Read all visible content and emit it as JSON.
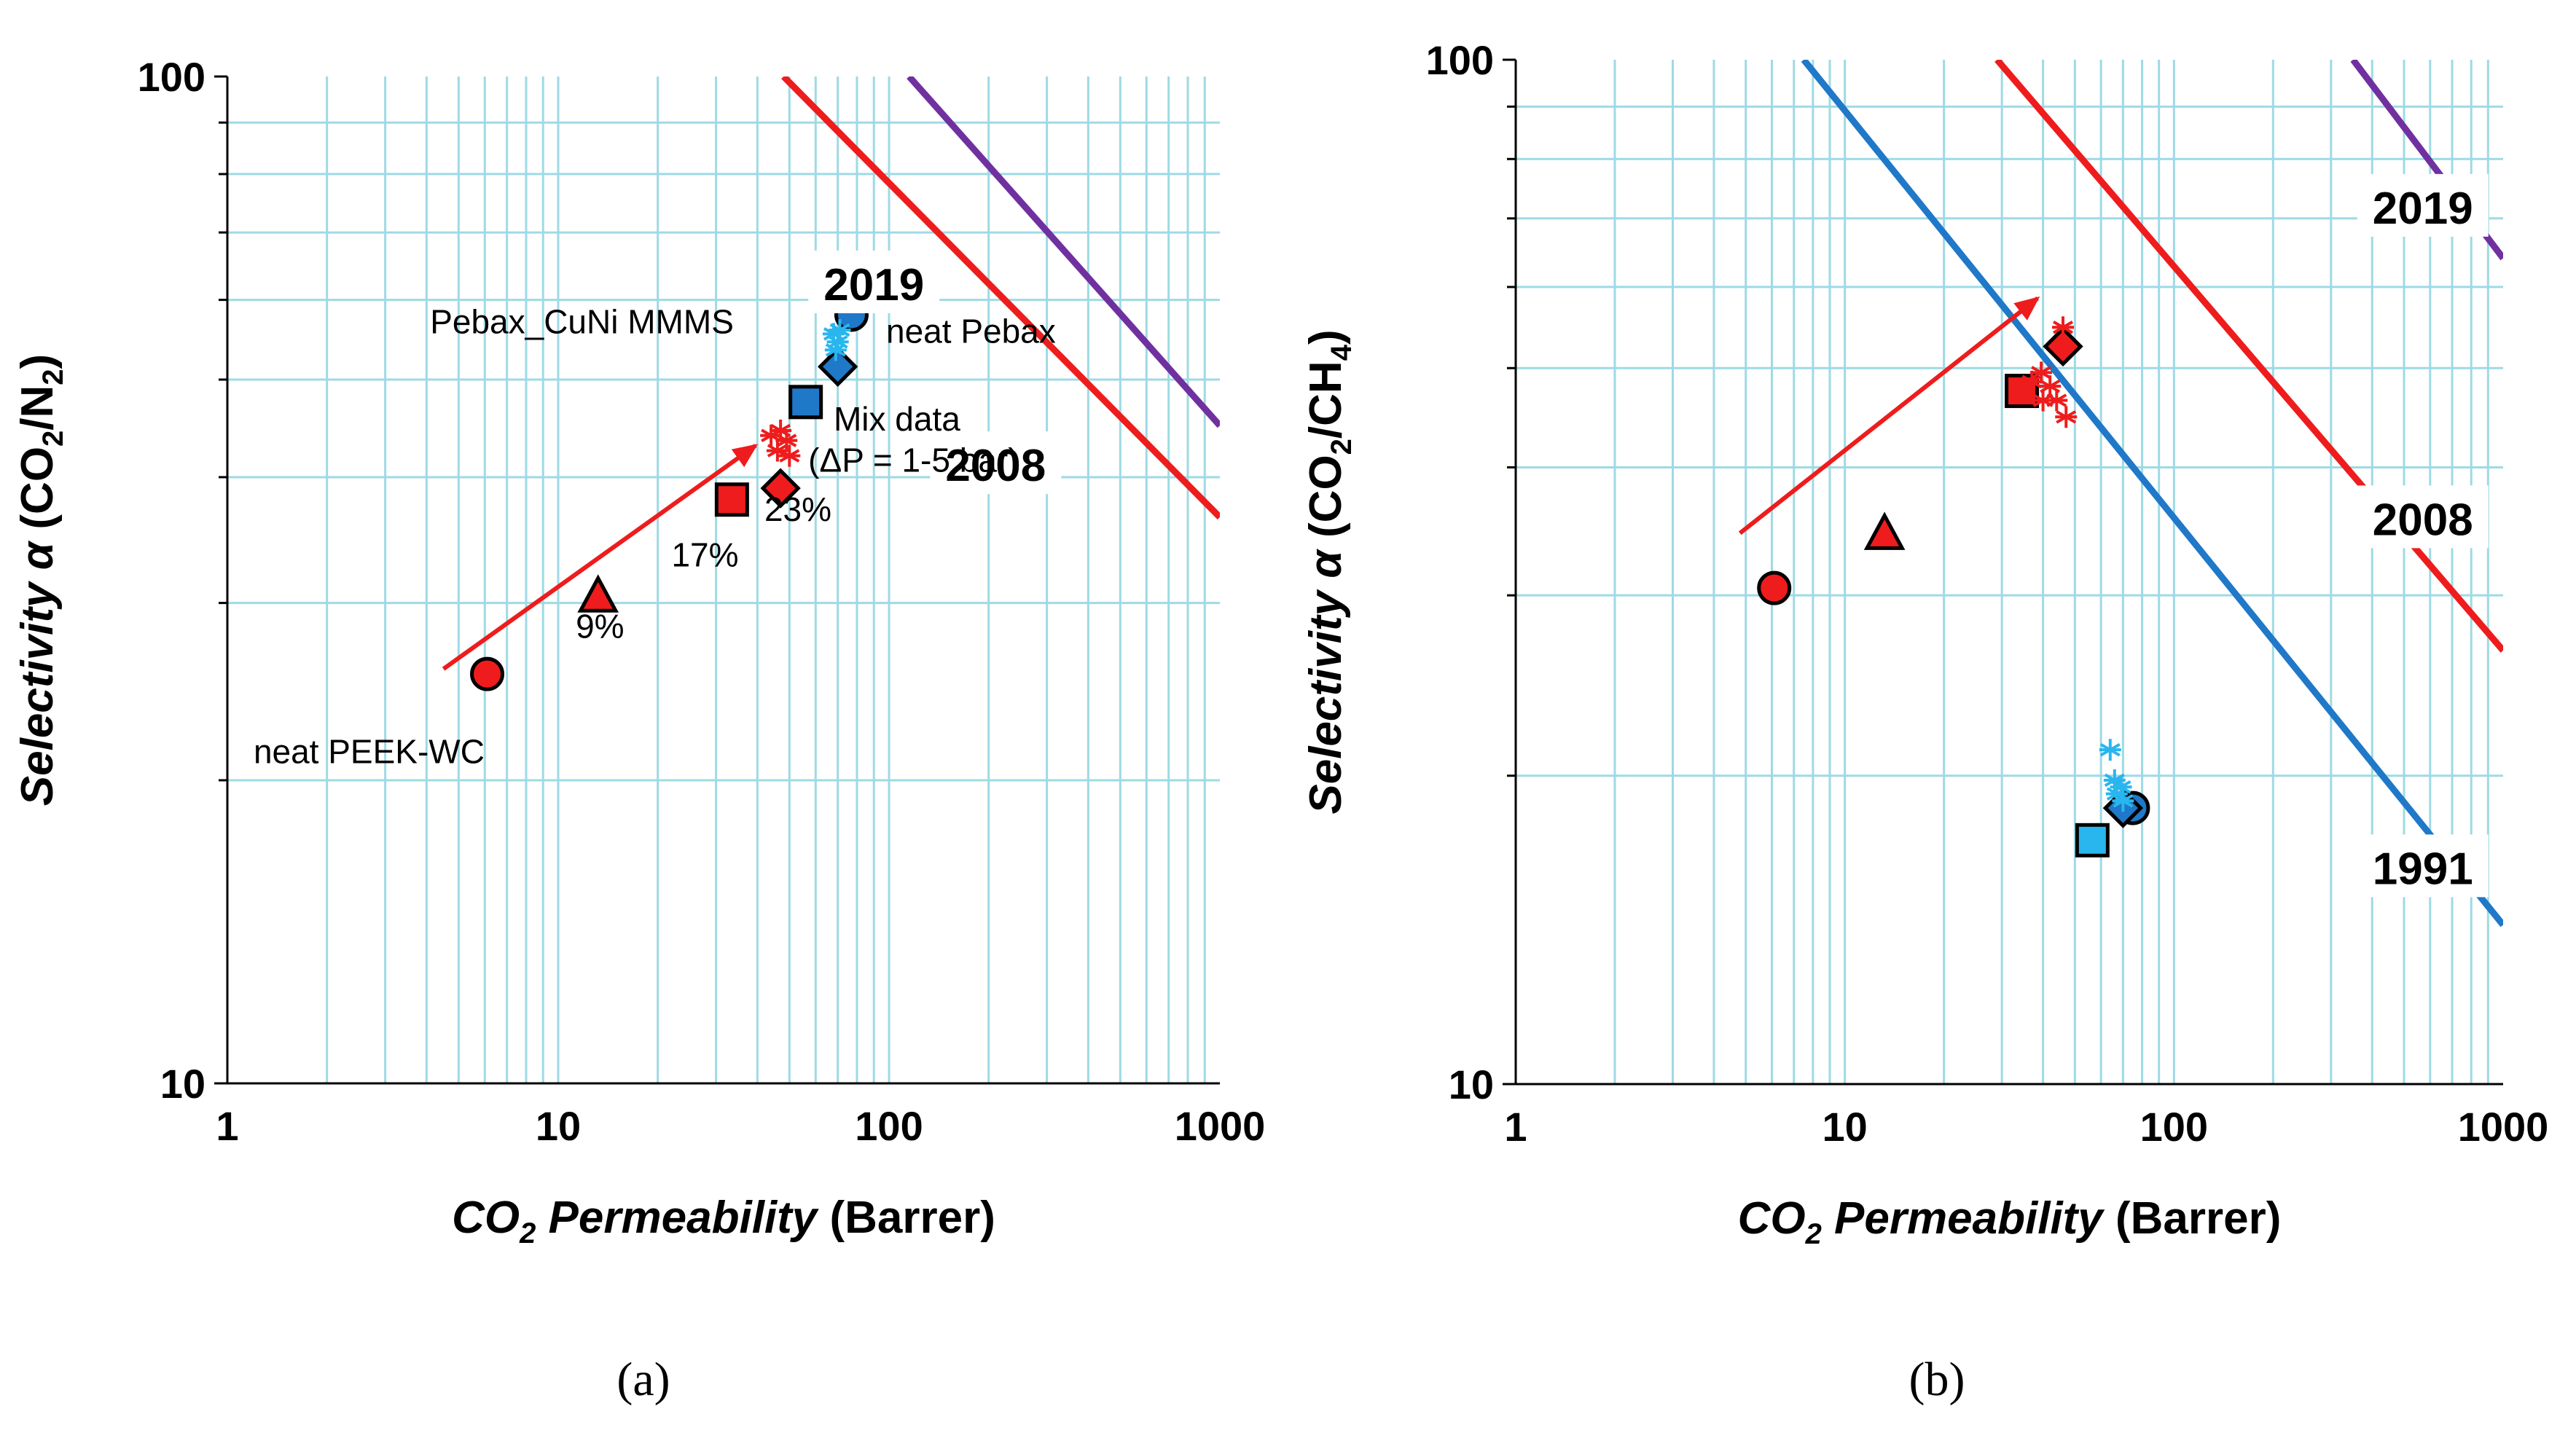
{
  "colors": {
    "grid": "#9edae5",
    "red": "#ee1c1c",
    "blue": "#1f78c8",
    "cyan": "#29b6ee",
    "purple": "#7030a0",
    "black": "#000000"
  },
  "chart_data": [
    {
      "type": "scatter",
      "panel_caption": "(a)",
      "x_scale": "log",
      "y_scale": "log",
      "xlim": [
        1,
        1000
      ],
      "ylim": [
        10,
        100
      ],
      "grid": true,
      "x_ticks": [
        "1",
        "10",
        "100",
        "1000"
      ],
      "y_ticks": [
        "10",
        "100"
      ],
      "xlabel": {
        "italic": "CO",
        "sub": "2",
        "italic2": " Permeability",
        "plain": " (Barrer)"
      },
      "ylabel": {
        "italic": "Selectivity α",
        "plain": " (CO",
        "sub": "2",
        "plain2": "/N",
        "sub2": "2",
        "plain3": ")"
      },
      "bounds": [
        {
          "name": "2019",
          "color": "#7030a0",
          "points": [
            [
              115,
              100
            ],
            [
              1000,
              45
            ]
          ],
          "label_at": [
            90,
            62
          ]
        },
        {
          "name": "2008",
          "color": "#ee1c1c",
          "points": [
            [
              48,
              100
            ],
            [
              1000,
              36.5
            ]
          ],
          "label_at": [
            210,
            41
          ]
        }
      ],
      "markers": [
        {
          "shape": "circle",
          "fill": "#ee1c1c",
          "x": 6.1,
          "y": 25.5
        },
        {
          "shape": "triangle",
          "fill": "#ee1c1c",
          "x": 13.2,
          "y": 30.5
        },
        {
          "shape": "square",
          "fill": "#ee1c1c",
          "x": 33.5,
          "y": 38
        },
        {
          "shape": "diamond",
          "fill": "#ee1c1c",
          "x": 47,
          "y": 39
        },
        {
          "shape": "circle",
          "fill": "#1f78c8",
          "x": 77,
          "y": 58
        },
        {
          "shape": "triangle",
          "fill": "#29b6ee",
          "x": 71,
          "y": 60.5
        },
        {
          "shape": "square",
          "fill": "#1f78c8",
          "x": 56,
          "y": 47.5
        },
        {
          "shape": "diamond",
          "fill": "#1f78c8",
          "x": 70,
          "y": 51.5
        }
      ],
      "stars": [
        {
          "color": "#ee1c1c",
          "x": 44,
          "y": 44
        },
        {
          "color": "#ee1c1c",
          "x": 47,
          "y": 44.5
        },
        {
          "color": "#ee1c1c",
          "x": 49,
          "y": 43.5
        },
        {
          "color": "#ee1c1c",
          "x": 46,
          "y": 42.5
        },
        {
          "color": "#ee1c1c",
          "x": 50,
          "y": 42
        },
        {
          "color": "#29b6ee",
          "x": 68,
          "y": 55.5
        },
        {
          "color": "#29b6ee",
          "x": 70,
          "y": 54.5
        },
        {
          "color": "#29b6ee",
          "x": 69,
          "y": 53.5
        },
        {
          "color": "#29b6ee",
          "x": 71,
          "y": 56
        }
      ],
      "arrow": {
        "color": "#ee1c1c",
        "from": [
          4.5,
          25.8
        ],
        "to": [
          39.5,
          43
        ]
      },
      "annotations": [
        {
          "text": "neat PEEK-WC",
          "x": 1.2,
          "y": 20.8
        },
        {
          "text": "9%",
          "x": 11.3,
          "y": 27.7
        },
        {
          "text": "17%",
          "x": 22,
          "y": 32.6
        },
        {
          "text": "23%",
          "x": 42,
          "y": 36.2
        },
        {
          "text": "Pebax_CuNi MMMS",
          "x": 4.1,
          "y": 55.6
        },
        {
          "text": "neat Pebax",
          "x": 98,
          "y": 54.4
        },
        {
          "text": "Mix data",
          "x": 68,
          "y": 44.5
        },
        {
          "text": "(ΔP = 1-5 bar)",
          "x": 57,
          "y": 40.5
        }
      ]
    },
    {
      "type": "scatter",
      "panel_caption": "(b)",
      "x_scale": "log",
      "y_scale": "log",
      "xlim": [
        1,
        1000
      ],
      "ylim": [
        10,
        100
      ],
      "grid": true,
      "x_ticks": [
        "1",
        "10",
        "100",
        "1000"
      ],
      "y_ticks": [
        "10",
        "100"
      ],
      "xlabel": {
        "italic": "CO",
        "sub": "2",
        "italic2": " Permeability",
        "plain": " (Barrer)"
      },
      "ylabel": {
        "italic": "Selectivity α",
        "plain": " (CO",
        "sub": "2",
        "plain2": "/CH",
        "sub2": "4",
        "plain3": ")"
      },
      "bounds": [
        {
          "name": "2019",
          "color": "#7030a0",
          "points": [
            [
              350,
              100
            ],
            [
              1000,
              64
            ]
          ],
          "label_at": [
            570,
            71.5
          ]
        },
        {
          "name": "2008",
          "color": "#ee1c1c",
          "points": [
            [
              29,
              100
            ],
            [
              1000,
              26.5
            ]
          ],
          "label_at": [
            570,
            35.5
          ]
        },
        {
          "name": "1991",
          "color": "#1f78c8",
          "points": [
            [
              7.5,
              100
            ],
            [
              1000,
              14.3
            ]
          ],
          "label_at": [
            570,
            16.2
          ]
        }
      ],
      "markers": [
        {
          "shape": "circle",
          "fill": "#ee1c1c",
          "x": 6.1,
          "y": 30.5
        },
        {
          "shape": "triangle",
          "fill": "#ee1c1c",
          "x": 13.2,
          "y": 34.5
        },
        {
          "shape": "square",
          "fill": "#ee1c1c",
          "x": 34.5,
          "y": 47.5
        },
        {
          "shape": "diamond",
          "fill": "#ee1c1c",
          "x": 46,
          "y": 52.5
        },
        {
          "shape": "circle",
          "fill": "#1f78c8",
          "x": 75,
          "y": 18.6
        },
        {
          "shape": "diamond",
          "fill": "#1f78c8",
          "x": 70,
          "y": 18.6
        },
        {
          "shape": "square",
          "fill": "#29b6ee",
          "x": 56.5,
          "y": 17.3
        }
      ],
      "stars": [
        {
          "color": "#ee1c1c",
          "x": 37,
          "y": 48.5
        },
        {
          "color": "#ee1c1c",
          "x": 39.5,
          "y": 49.5
        },
        {
          "color": "#ee1c1c",
          "x": 42,
          "y": 48
        },
        {
          "color": "#ee1c1c",
          "x": 40,
          "y": 46.5
        },
        {
          "color": "#ee1c1c",
          "x": 44,
          "y": 46.5
        },
        {
          "color": "#ee1c1c",
          "x": 47,
          "y": 44.8
        },
        {
          "color": "#ee1c1c",
          "x": 46,
          "y": 54.8
        },
        {
          "color": "#29b6ee",
          "x": 64,
          "y": 21.2
        },
        {
          "color": "#29b6ee",
          "x": 66,
          "y": 19.8
        },
        {
          "color": "#29b6ee",
          "x": 67,
          "y": 19.2
        },
        {
          "color": "#29b6ee",
          "x": 69,
          "y": 19.5
        },
        {
          "color": "#29b6ee",
          "x": 70,
          "y": 18.9
        }
      ],
      "arrow": {
        "color": "#ee1c1c",
        "from": [
          4.8,
          34.5
        ],
        "to": [
          38.5,
          58.5
        ]
      },
      "annotations": []
    }
  ]
}
